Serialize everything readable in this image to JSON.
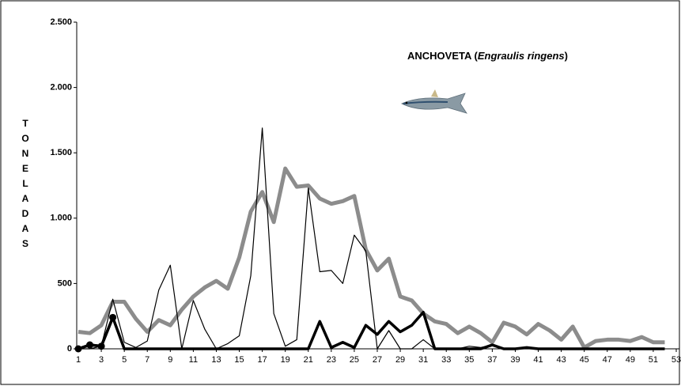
{
  "chart_data": {
    "type": "line",
    "title": "ANCHOVETA  (",
    "title_italic": "Engraulis ringens",
    "title_end": ")",
    "ylabel": "TONELADAS",
    "x": [
      1,
      2,
      3,
      4,
      5,
      6,
      7,
      8,
      9,
      10,
      11,
      12,
      13,
      14,
      15,
      16,
      17,
      18,
      19,
      20,
      21,
      22,
      23,
      24,
      25,
      26,
      27,
      28,
      29,
      30,
      31,
      32,
      33,
      34,
      35,
      36,
      37,
      38,
      39,
      40,
      41,
      42,
      43,
      44,
      45,
      46,
      47,
      48,
      49,
      50,
      51,
      52
    ],
    "series": [
      {
        "color": "#8c8c8c",
        "width": 5,
        "values": [
          130,
          120,
          180,
          360,
          360,
          230,
          130,
          220,
          180,
          300,
          400,
          470,
          520,
          460,
          700,
          1050,
          1200,
          970,
          1380,
          1240,
          1250,
          1150,
          1110,
          1130,
          1170,
          760,
          600,
          690,
          400,
          370,
          270,
          210,
          190,
          120,
          170,
          120,
          50,
          200,
          170,
          110,
          190,
          140,
          70,
          170,
          10,
          60,
          70,
          70,
          60,
          90,
          50,
          50
        ]
      },
      {
        "color": "#000000",
        "width": 1.2,
        "values": [
          0,
          0,
          20,
          380,
          50,
          10,
          60,
          450,
          640,
          0,
          370,
          150,
          0,
          40,
          100,
          560,
          1690,
          270,
          20,
          70,
          1230,
          590,
          600,
          500,
          870,
          750,
          0,
          140,
          0,
          0,
          70,
          0,
          0,
          0,
          20,
          10,
          30,
          0,
          0,
          0,
          0,
          0,
          0,
          0,
          0,
          0,
          0,
          0,
          0,
          0,
          0,
          0
        ]
      },
      {
        "color": "#000000",
        "width": 3.5,
        "values": [
          0,
          30,
          20,
          240,
          0,
          0,
          0,
          0,
          0,
          0,
          0,
          0,
          0,
          0,
          0,
          0,
          0,
          0,
          0,
          0,
          0,
          210,
          10,
          50,
          10,
          180,
          110,
          210,
          130,
          180,
          280,
          0,
          0,
          0,
          0,
          0,
          30,
          0,
          0,
          10,
          0,
          0,
          0,
          0,
          0,
          0,
          0,
          0,
          0,
          0,
          0,
          0
        ]
      },
      {
        "color": "#000000",
        "width": 3.5,
        "marker": true,
        "values": [
          0,
          30,
          20,
          240,
          null,
          null,
          null,
          null,
          null,
          null,
          null,
          null,
          null,
          null,
          null,
          null,
          null,
          null,
          null,
          null,
          null,
          null,
          null,
          null,
          null,
          null,
          null,
          null,
          null,
          null,
          null,
          null,
          null,
          null,
          null,
          null,
          null,
          null,
          null,
          null,
          null,
          null,
          null,
          null,
          null,
          null,
          null,
          null,
          null,
          null,
          null,
          null
        ]
      }
    ],
    "xlim": [
      1,
      53
    ],
    "xticks": [
      1,
      3,
      5,
      7,
      9,
      11,
      13,
      15,
      17,
      19,
      21,
      23,
      25,
      27,
      29,
      31,
      33,
      35,
      37,
      39,
      41,
      43,
      45,
      47,
      49,
      51,
      53
    ],
    "ylim": [
      0,
      2500
    ],
    "yticks": [
      0,
      500,
      {
        "value": 1000,
        "label": "1.000"
      },
      {
        "value": 1500,
        "label": "1.500"
      },
      {
        "value": 2000,
        "label": "2.000"
      },
      {
        "value": 2500,
        "label": "2.500"
      }
    ]
  }
}
